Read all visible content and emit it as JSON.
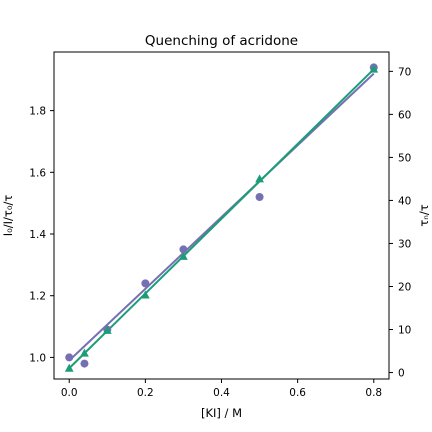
{
  "chart_data": {
    "type": "scatter",
    "title": "Quenching of acridone",
    "xlabel": "[KI] / M",
    "ylabel_left": "I₀/I/τ₀/τ",
    "ylabel_right": "τₙ/τ",
    "xlim": [
      -0.04,
      0.84
    ],
    "ylim_left": [
      0.93,
      1.99
    ],
    "ylim_right": [
      -1.5,
      74.5
    ],
    "x_ticks": [
      0.0,
      0.2,
      0.4,
      0.6,
      0.8
    ],
    "x_tick_labels": [
      "0.0",
      "0.2",
      "0.4",
      "0.6",
      "0.8"
    ],
    "y_left_ticks": [
      1.0,
      1.2,
      1.4,
      1.6,
      1.8
    ],
    "y_left_tick_labels": [
      "1.0",
      "1.2",
      "1.4",
      "1.6",
      "1.8"
    ],
    "y_right_ticks": [
      0,
      10,
      20,
      30,
      40,
      50,
      60,
      70
    ],
    "y_right_tick_labels": [
      "0",
      "10",
      "20",
      "30",
      "40",
      "50",
      "60",
      "70"
    ],
    "grid": false,
    "series": [
      {
        "axis": "left",
        "marker": "circle",
        "color": "#7570b3",
        "x": [
          0.0,
          0.04,
          0.1,
          0.2,
          0.3,
          0.5,
          0.8
        ],
        "y": [
          1.0,
          0.98,
          1.09,
          1.24,
          1.35,
          1.52,
          1.94
        ],
        "fit_line": {
          "x": [
            0.0,
            0.8
          ],
          "y": [
            0.99,
            1.92
          ]
        }
      },
      {
        "axis": "right",
        "marker": "triangle",
        "color": "#1b9e77",
        "x": [
          0.0,
          0.04,
          0.1,
          0.2,
          0.3,
          0.5,
          0.8
        ],
        "y": [
          1,
          4.5,
          9.8,
          18,
          27,
          45,
          70.5
        ],
        "fit_line": {
          "x": [
            0.0,
            0.8
          ],
          "y": [
            1,
            70.5
          ]
        }
      }
    ]
  }
}
